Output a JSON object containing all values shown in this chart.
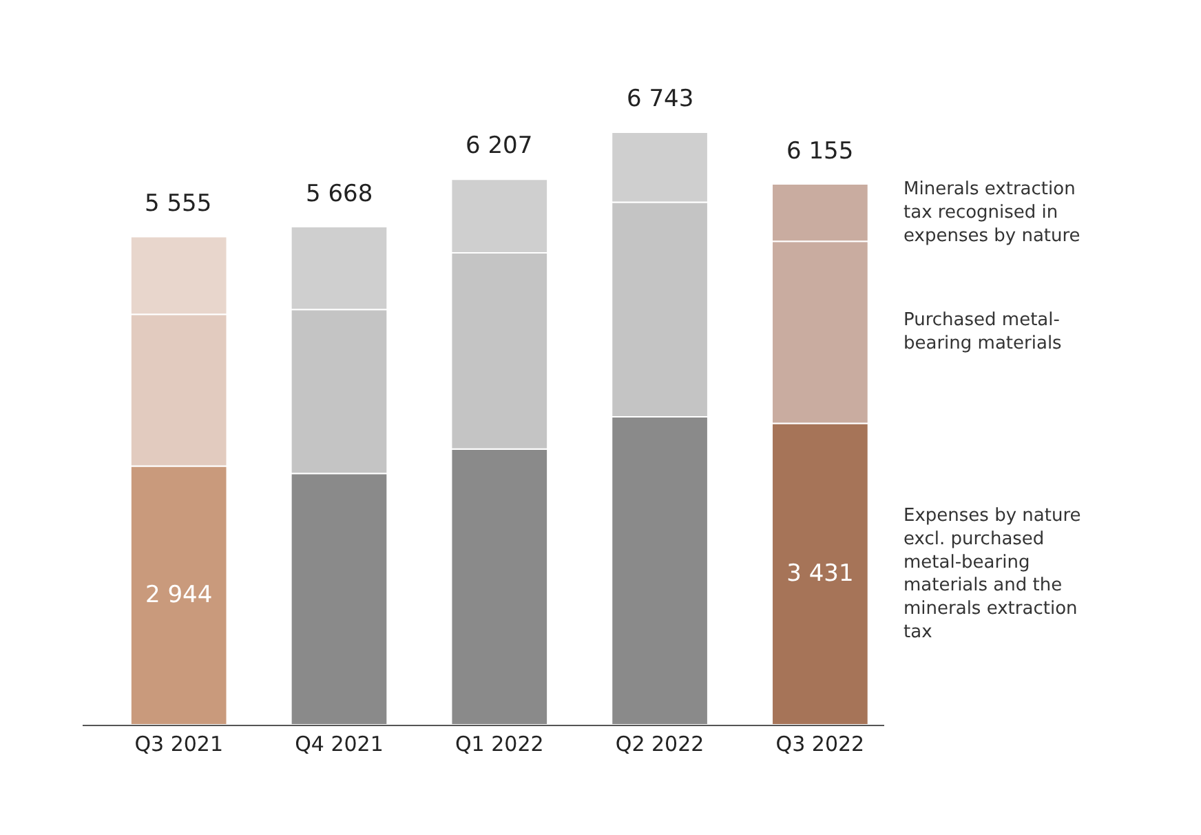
{
  "chart_data": {
    "type": "bar",
    "stacked": true,
    "categories": [
      "Q3 2021",
      "Q4 2021",
      "Q1 2022",
      "Q2 2022",
      "Q3 2022"
    ],
    "series": [
      {
        "name": "Expenses by nature excl. purchased metal-bearing materials and the minerals extraction tax",
        "colors": [
          "#c99a7c",
          "#8a8a8a",
          "#8a8a8a",
          "#8a8a8a",
          "#a67458"
        ],
        "values": [
          2944,
          2860,
          3139,
          3505,
          3431
        ],
        "value_labels": [
          "2 944",
          null,
          null,
          null,
          "3 431"
        ]
      },
      {
        "name": "Purchased metal-bearing materials",
        "colors": [
          "#e2cbbf",
          "#c4c4c4",
          "#c4c4c4",
          "#c4c4c4",
          "#c9aca0"
        ],
        "values": [
          1727,
          1866,
          2232,
          2442,
          2072
        ]
      },
      {
        "name": "Minerals extraction tax recognised in expenses by nature",
        "colors": [
          "#e8d6cc",
          "#cfcfcf",
          "#cfcfcf",
          "#cfcfcf",
          "#c9aca0"
        ],
        "values": [
          884,
          942,
          836,
          796,
          652
        ]
      }
    ],
    "totals": [
      "5 555",
      "5 668",
      "6 207",
      "6 743",
      "6 155"
    ],
    "legend": false
  }
}
